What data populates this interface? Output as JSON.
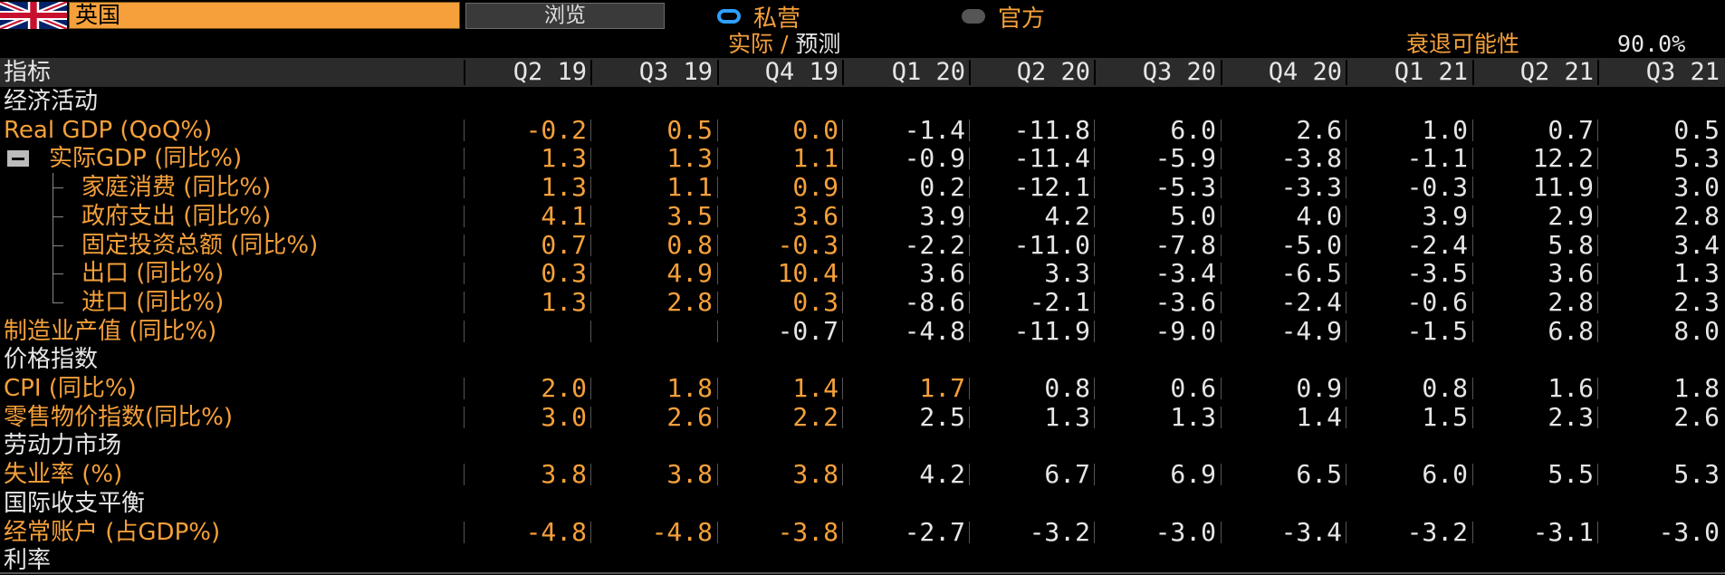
{
  "header": {
    "country": "英国",
    "browse_label": "浏览",
    "radio_private": "私营",
    "radio_official": "官方",
    "actual_label": "实际 /",
    "forecast_label": "预测",
    "recession_label": "衰退可能性",
    "recession_value": "90.0%"
  },
  "columns": {
    "indicator": "指标",
    "periods": [
      "Q2 19",
      "Q3 19",
      "Q4 19",
      "Q1 20",
      "Q2 20",
      "Q3 20",
      "Q4 20",
      "Q1 21",
      "Q2 21",
      "Q3 21"
    ]
  },
  "rows": [
    {
      "type": "section",
      "label": "经济活动"
    },
    {
      "type": "data",
      "label": "Real GDP (QoQ%)",
      "values": [
        "-0.2",
        "0.5",
        "0.0",
        "-1.4",
        "-11.8",
        "6.0",
        "2.6",
        "1.0",
        "0.7",
        "0.5"
      ],
      "actual_count": 3
    },
    {
      "type": "data",
      "label": "实际GDP (同比%)",
      "values": [
        "1.3",
        "1.3",
        "1.1",
        "-0.9",
        "-11.4",
        "-5.9",
        "-3.8",
        "-1.1",
        "12.2",
        "5.3"
      ],
      "actual_count": 3,
      "collapsible": true
    },
    {
      "type": "data",
      "label": "家庭消费 (同比%)",
      "values": [
        "1.3",
        "1.1",
        "0.9",
        "0.2",
        "-12.1",
        "-5.3",
        "-3.3",
        "-0.3",
        "11.9",
        "3.0"
      ],
      "actual_count": 3,
      "child": true
    },
    {
      "type": "data",
      "label": "政府支出 (同比%)",
      "values": [
        "4.1",
        "3.5",
        "3.6",
        "3.9",
        "4.2",
        "5.0",
        "4.0",
        "3.9",
        "2.9",
        "2.8"
      ],
      "actual_count": 3,
      "child": true
    },
    {
      "type": "data",
      "label": "固定投资总额 (同比%)",
      "values": [
        "0.7",
        "0.8",
        "-0.3",
        "-2.2",
        "-11.0",
        "-7.8",
        "-5.0",
        "-2.4",
        "5.8",
        "3.4"
      ],
      "actual_count": 3,
      "child": true
    },
    {
      "type": "data",
      "label": "出口 (同比%)",
      "values": [
        "0.3",
        "4.9",
        "10.4",
        "3.6",
        "3.3",
        "-3.4",
        "-6.5",
        "-3.5",
        "3.6",
        "1.3"
      ],
      "actual_count": 3,
      "child": true
    },
    {
      "type": "data",
      "label": "进口 (同比%)",
      "values": [
        "1.3",
        "2.8",
        "0.3",
        "-8.6",
        "-2.1",
        "-3.6",
        "-2.4",
        "-0.6",
        "2.8",
        "2.3"
      ],
      "actual_count": 3,
      "child": true,
      "last": true
    },
    {
      "type": "data",
      "label": "制造业产值 (同比%)",
      "values": [
        "",
        "",
        "-0.7",
        "-4.8",
        "-11.9",
        "-9.0",
        "-4.9",
        "-1.5",
        "6.8",
        "8.0"
      ],
      "actual_count": 0
    },
    {
      "type": "section",
      "label": "价格指数"
    },
    {
      "type": "data",
      "label": "CPI (同比%)",
      "values": [
        "2.0",
        "1.8",
        "1.4",
        "1.7",
        "0.8",
        "0.6",
        "0.9",
        "0.8",
        "1.6",
        "1.8"
      ],
      "actual_count": 4
    },
    {
      "type": "data",
      "label": "零售物价指数(同比%)",
      "values": [
        "3.0",
        "2.6",
        "2.2",
        "2.5",
        "1.3",
        "1.3",
        "1.4",
        "1.5",
        "2.3",
        "2.6"
      ],
      "actual_count": 3
    },
    {
      "type": "section",
      "label": "劳动力市场"
    },
    {
      "type": "data",
      "label": "失业率 (%)",
      "values": [
        "3.8",
        "3.8",
        "3.8",
        "4.2",
        "6.7",
        "6.9",
        "6.5",
        "6.0",
        "5.5",
        "5.3"
      ],
      "actual_count": 3
    },
    {
      "type": "section",
      "label": "国际收支平衡"
    },
    {
      "type": "data",
      "label": "经常账户 (占GDP%)",
      "values": [
        "-4.8",
        "-4.8",
        "-3.8",
        "-2.7",
        "-3.2",
        "-3.0",
        "-3.4",
        "-3.2",
        "-3.1",
        "-3.0"
      ],
      "actual_count": 3
    },
    {
      "type": "section",
      "label": "利率"
    }
  ],
  "colors": {
    "accent": "#f5a03a",
    "text": "#e6e6e6",
    "header_bg": "#2b2b2b",
    "radio_on": "#2ea0ff"
  }
}
